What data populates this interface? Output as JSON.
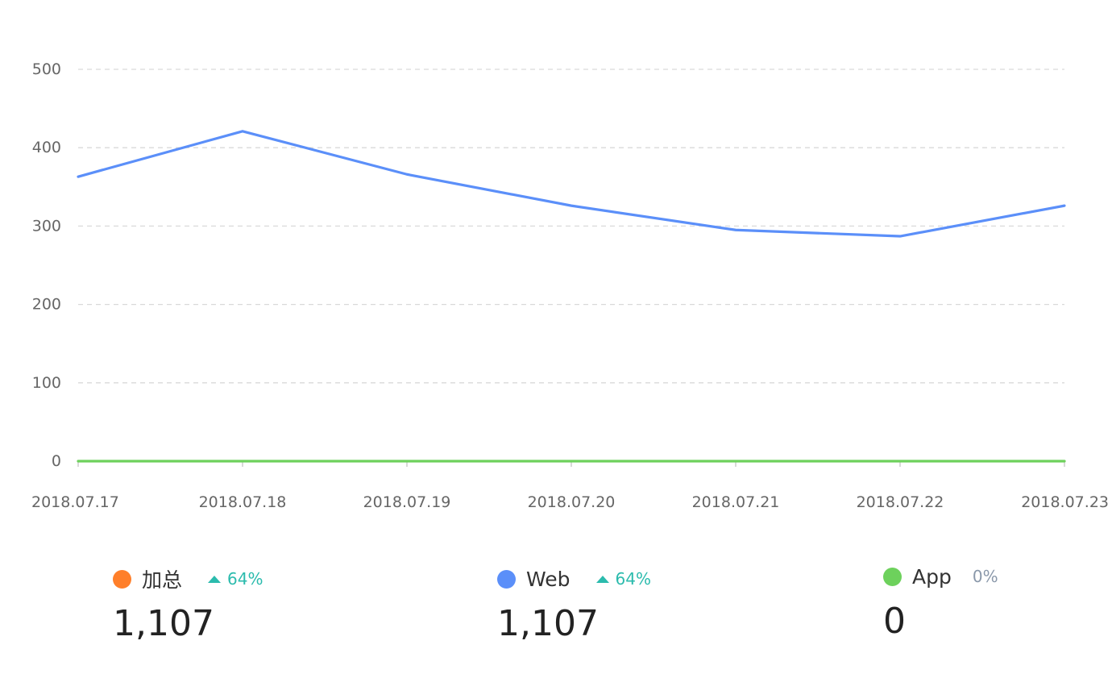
{
  "chart_data": {
    "type": "line",
    "categories": [
      "2018.07.17",
      "2018.07.18",
      "2018.07.19",
      "2018.07.20",
      "2018.07.21",
      "2018.07.22",
      "2018.07.23"
    ],
    "ylim": [
      0,
      500
    ],
    "yticks": [
      "0",
      "100",
      "200",
      "300",
      "400",
      "500"
    ],
    "grid": true,
    "series": [
      {
        "name": "Web",
        "color": "#5b8ff9",
        "values": [
          363,
          421,
          366,
          326,
          295,
          287,
          326
        ]
      },
      {
        "name": "App",
        "color": "#6dd15c",
        "values": [
          0,
          0,
          0,
          0,
          0,
          0,
          0
        ]
      }
    ]
  },
  "legend": [
    {
      "name": "加总",
      "color": "#ff7f2a",
      "change": "64%",
      "trend": "up",
      "change_color": "#2bbbad",
      "value": "1,107"
    },
    {
      "name": "Web",
      "color": "#5b8ff9",
      "change": "64%",
      "trend": "up",
      "change_color": "#2bbbad",
      "value": "1,107"
    },
    {
      "name": "App",
      "color": "#6dd15c",
      "change": "0%",
      "trend": "none",
      "change_color": "#8a98aa",
      "value": "0"
    }
  ]
}
